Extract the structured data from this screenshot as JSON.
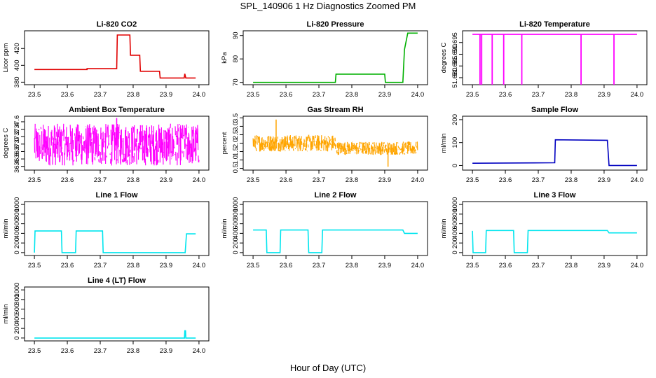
{
  "figure": {
    "title": "SPL_140906  1 Hz Diagnostics Zoomed PM",
    "xlabel": "Hour of Day (UTC)"
  },
  "chart_data": [
    {
      "type": "line",
      "title": "Li-820 CO2",
      "ylabel": "Licor ppm",
      "color": "#e00000",
      "xlim": [
        23.47,
        24.03
      ],
      "ylim": [
        377,
        441
      ],
      "xticks": [
        23.5,
        23.6,
        23.7,
        23.8,
        23.9,
        24.0
      ],
      "yticks": [
        380,
        400,
        420
      ],
      "x": [
        23.5,
        23.66,
        23.66,
        23.75,
        23.752,
        23.76,
        23.79,
        23.792,
        23.82,
        23.822,
        23.88,
        23.882,
        23.955,
        23.957,
        23.96,
        23.962,
        23.99
      ],
      "y": [
        395,
        395,
        396,
        396,
        436,
        436,
        436,
        412,
        412,
        393,
        393,
        385,
        385,
        390,
        385,
        385,
        385
      ]
    },
    {
      "type": "line",
      "title": "Li-820 Pressure",
      "ylabel": "kPa",
      "color": "#00b000",
      "xlim": [
        23.47,
        24.03
      ],
      "ylim": [
        69,
        92
      ],
      "xticks": [
        23.5,
        23.6,
        23.7,
        23.8,
        23.9,
        24.0
      ],
      "yticks": [
        70,
        80,
        90
      ],
      "x": [
        23.5,
        23.75,
        23.752,
        23.9,
        23.902,
        23.955,
        23.96,
        23.97,
        24.0
      ],
      "y": [
        70,
        70,
        73.5,
        73.5,
        70,
        70,
        84,
        91,
        91
      ]
    },
    {
      "type": "line",
      "title": "Li-820 Temperature",
      "ylabel": "degrees C",
      "color": "#ff00ff",
      "xlim": [
        23.47,
        24.03
      ],
      "ylim": [
        51.677,
        51.7
      ],
      "xticks": [
        23.5,
        23.6,
        23.7,
        23.8,
        23.9,
        24.0
      ],
      "yticks": [
        51.68,
        51.685,
        51.69,
        51.695
      ],
      "baseline": 51.6985,
      "dips": [
        23.523,
        23.528,
        23.56,
        23.595,
        23.65,
        23.83,
        23.93
      ],
      "x": [
        23.5,
        24.0
      ],
      "y": [
        51.6985,
        51.6985
      ]
    },
    {
      "type": "line",
      "title": "Ambient Box Temperature",
      "ylabel": "degrees C",
      "color": "#ff00ff",
      "xlim": [
        23.47,
        24.03
      ],
      "ylim": [
        36.3,
        37.75
      ],
      "xticks": [
        23.5,
        23.6,
        23.7,
        23.8,
        23.9,
        24.0
      ],
      "yticks": [
        36.4,
        36.6,
        36.8,
        37.0,
        37.2,
        37.4,
        37.6
      ],
      "segments": [
        {
          "x_start": 23.5,
          "x_end": 24.0,
          "y_min": 36.42,
          "y_max": 37.55
        }
      ],
      "spikes": [
        {
          "x": 23.75,
          "y": 37.7
        }
      ]
    },
    {
      "type": "line",
      "title": "Gas Stream RH",
      "ylabel": "percent",
      "color": "#ffa500",
      "xlim": [
        23.47,
        24.03
      ],
      "ylim": [
        0.4,
        3.6
      ],
      "xticks": [
        23.5,
        23.6,
        23.7,
        23.8,
        23.9,
        24.0
      ],
      "yticks": [
        0.5,
        1.0,
        1.5,
        2.0,
        2.5,
        3.0,
        3.5
      ],
      "segments": [
        {
          "x_start": 23.5,
          "x_end": 23.75,
          "y_min": 1.5,
          "y_max": 2.5
        },
        {
          "x_start": 23.75,
          "x_end": 24.0,
          "y_min": 1.3,
          "y_max": 2.1
        }
      ],
      "spikes": [
        {
          "x": 23.57,
          "y": 3.4
        },
        {
          "x": 23.91,
          "y": 0.6
        }
      ]
    },
    {
      "type": "line",
      "title": "Sample Flow",
      "ylabel": "ml/min",
      "color": "#0000c0",
      "xlim": [
        23.47,
        24.03
      ],
      "ylim": [
        -20,
        215
      ],
      "xticks": [
        23.5,
        23.6,
        23.7,
        23.8,
        23.9,
        24.0
      ],
      "yticks": [
        0,
        100,
        200
      ],
      "x": [
        23.5,
        23.75,
        23.752,
        23.91,
        23.915,
        24.0
      ],
      "y": [
        10,
        12,
        112,
        110,
        0,
        0
      ]
    },
    {
      "type": "line",
      "title": "Line 1 Flow",
      "ylabel": "ml/min",
      "color": "#00e5ee",
      "xlim": [
        23.47,
        24.03
      ],
      "ylim": [
        -60,
        1060
      ],
      "xticks": [
        23.5,
        23.6,
        23.7,
        23.8,
        23.9,
        24.0
      ],
      "yticks": [
        0,
        200,
        400,
        600,
        800,
        1000
      ],
      "x": [
        23.5,
        23.502,
        23.582,
        23.584,
        23.625,
        23.627,
        23.707,
        23.709,
        23.958,
        23.962,
        23.99
      ],
      "y": [
        0,
        450,
        450,
        0,
        0,
        450,
        450,
        0,
        0,
        390,
        390
      ]
    },
    {
      "type": "line",
      "title": "Line 2 Flow",
      "ylabel": "ml/min",
      "color": "#00e5ee",
      "xlim": [
        23.47,
        24.03
      ],
      "ylim": [
        -60,
        1060
      ],
      "xticks": [
        23.5,
        23.6,
        23.7,
        23.8,
        23.9,
        24.0
      ],
      "yticks": [
        0,
        200,
        400,
        600,
        800,
        1000
      ],
      "x": [
        23.5,
        23.54,
        23.542,
        23.582,
        23.584,
        23.667,
        23.669,
        23.709,
        23.711,
        23.955,
        23.96,
        24.0
      ],
      "y": [
        470,
        470,
        0,
        0,
        470,
        470,
        0,
        0,
        470,
        470,
        400,
        400
      ]
    },
    {
      "type": "line",
      "title": "Line 3 Flow",
      "ylabel": "ml/min",
      "color": "#00e5ee",
      "xlim": [
        23.47,
        24.03
      ],
      "ylim": [
        -60,
        1060
      ],
      "xticks": [
        23.5,
        23.6,
        23.7,
        23.8,
        23.9,
        24.0
      ],
      "yticks": [
        0,
        200,
        400,
        600,
        800,
        1000
      ],
      "x": [
        23.5,
        23.502,
        23.54,
        23.542,
        23.625,
        23.627,
        23.667,
        23.669,
        23.91,
        23.915,
        24.0
      ],
      "y": [
        450,
        0,
        0,
        460,
        460,
        0,
        0,
        460,
        460,
        410,
        410
      ]
    },
    {
      "type": "line",
      "title": "Line 4 (LT) Flow",
      "ylabel": "ml/min",
      "color": "#00e5ee",
      "xlim": [
        23.47,
        24.03
      ],
      "ylim": [
        -60,
        1060
      ],
      "xticks": [
        23.5,
        23.6,
        23.7,
        23.8,
        23.9,
        24.0
      ],
      "yticks": [
        0,
        200,
        400,
        600,
        800,
        1000
      ],
      "x": [
        23.5,
        23.956,
        23.957,
        23.959,
        23.96,
        23.99
      ],
      "y": [
        0,
        0,
        150,
        150,
        0,
        0
      ]
    }
  ]
}
